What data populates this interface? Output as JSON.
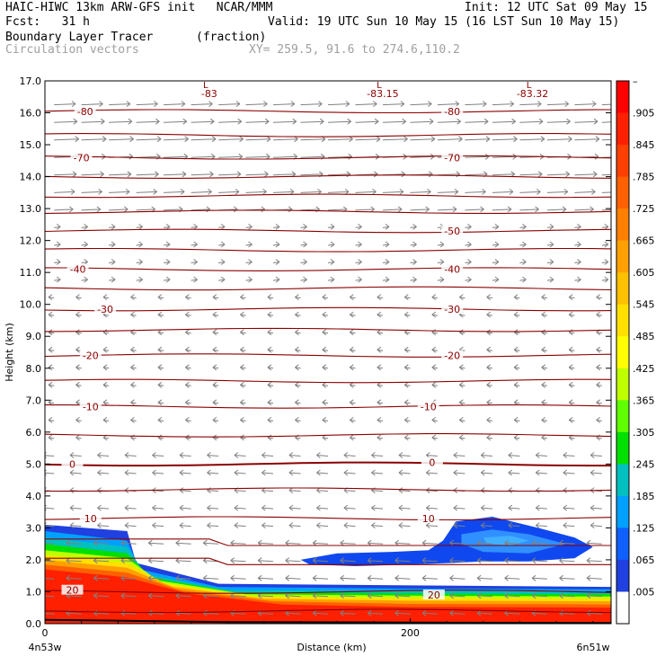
{
  "header": {
    "line1_left": "HAIC-HIWC 13km ARW-GFS init   NCAR/MMM",
    "line1_right": "Init: 12 UTC Sat 09 May 15",
    "fcst": "Fcst:   31 h",
    "valid": "Valid: 19 UTC Sun 10 May 15 (16 LST Sun 10 May 15)",
    "field": "Boundary Layer Tracer",
    "units": "(fraction)",
    "vectors": "Circulation vectors",
    "xy": "XY= 259.5, 91.6 to 274.6,110.2"
  },
  "chart_data": {
    "type": "heatmap",
    "ylabel": "Height (km)",
    "xlabel": "Distance (km)",
    "ylim": [
      0,
      17
    ],
    "xlim": [
      0,
      310
    ],
    "y_ticks": [
      "0.0",
      "1.0",
      "2.0",
      "3.0",
      "4.0",
      "5.0",
      "6.0",
      "7.0",
      "8.0",
      "9.0",
      "10.0",
      "11.0",
      "12.0",
      "13.0",
      "14.0",
      "15.0",
      "16.0",
      "17.0"
    ],
    "x_ticks": [
      {
        "value": 0,
        "label": "0"
      },
      {
        "value": 200,
        "label": "200"
      }
    ],
    "x_end_labels": {
      "left": "4n53w",
      "right": "6n51w"
    },
    "colorbar": {
      "labels": [
        "–",
        ".905",
        ".845",
        ".785",
        ".725",
        ".665",
        ".605",
        ".545",
        ".485",
        ".425",
        ".365",
        ".305",
        ".245",
        ".185",
        ".125",
        ".065",
        ".005"
      ],
      "colors": [
        "#ff0000",
        "#ff2000",
        "#ff4000",
        "#ff6000",
        "#ff8000",
        "#ffa000",
        "#ffc000",
        "#ffe000",
        "#ffff00",
        "#c0ff00",
        "#60ff00",
        "#00e000",
        "#00c0c0",
        "#00a0ff",
        "#1060ff",
        "#2040e0",
        "#ffffff"
      ]
    },
    "contour_levels": [
      {
        "label": "-80",
        "y": 16.0,
        "positions": [
          [
            22,
            16.05
          ],
          [
            223,
            16.05
          ]
        ]
      },
      {
        "label": "-70",
        "y": 14.6,
        "positions": [
          [
            20,
            14.6
          ],
          [
            223,
            14.6
          ]
        ]
      },
      {
        "label": "-50",
        "y": 12.3,
        "positions": [
          [
            223,
            12.3
          ]
        ]
      },
      {
        "label": "-40",
        "y": 11.1,
        "positions": [
          [
            18,
            11.1
          ],
          [
            223,
            11.1
          ]
        ]
      },
      {
        "label": "-30",
        "y": 9.85,
        "positions": [
          [
            33,
            9.85
          ],
          [
            223,
            9.85
          ]
        ]
      },
      {
        "label": "-20",
        "y": 8.4,
        "positions": [
          [
            25,
            8.4
          ],
          [
            223,
            8.4
          ]
        ]
      },
      {
        "label": "-10",
        "y": 6.8,
        "positions": [
          [
            25,
            6.8
          ],
          [
            210,
            6.8
          ]
        ]
      },
      {
        "label": "0",
        "y": 5.0,
        "positions": [
          [
            15,
            5.0
          ],
          [
            212,
            5.05
          ]
        ]
      },
      {
        "label": "10",
        "y": 3.3,
        "positions": [
          [
            25,
            3.3
          ],
          [
            210,
            3.3
          ]
        ]
      },
      {
        "label": "20",
        "y": 1.0,
        "positions": [
          [
            15,
            1.05
          ],
          [
            213,
            0.9
          ]
        ]
      }
    ],
    "minima": [
      {
        "label": "L",
        "value": "-83",
        "x": 88
      },
      {
        "label": "L",
        "value": "-83.15",
        "x": 183
      },
      {
        "label": "L",
        "value": "-83.32",
        "x": 265
      }
    ]
  }
}
